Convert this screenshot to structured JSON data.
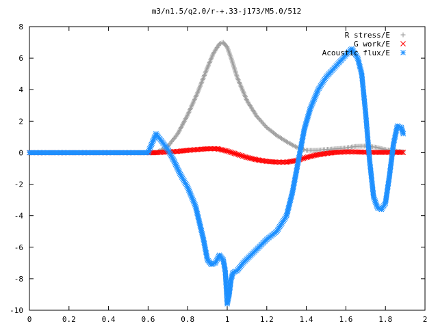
{
  "chart_data": {
    "type": "scatter",
    "title": "m3/n1.5/q2.0/r-+.33-j173/M5.0/512",
    "xlabel": "",
    "ylabel": "",
    "xlim": [
      0,
      2
    ],
    "ylim": [
      -10,
      8
    ],
    "x_ticks": [
      "0",
      "0.2",
      "0.4",
      "0.6",
      "0.8",
      "1",
      "1.2",
      "1.4",
      "1.6",
      "1.8",
      "2"
    ],
    "y_ticks": [
      "8",
      "6",
      "4",
      "2",
      "0",
      "-2",
      "-4",
      "-6",
      "-8",
      "-10"
    ],
    "grid": false,
    "legend_position": "top-right",
    "series": [
      {
        "name": "R stress/E",
        "marker": "plus",
        "color": "#a0a0a0",
        "x": [
          0.0,
          0.1,
          0.2,
          0.3,
          0.4,
          0.5,
          0.6,
          0.64,
          0.7,
          0.75,
          0.8,
          0.85,
          0.9,
          0.93,
          0.96,
          0.98,
          1.0,
          1.02,
          1.05,
          1.1,
          1.15,
          1.2,
          1.25,
          1.3,
          1.35,
          1.4,
          1.45,
          1.5,
          1.55,
          1.6,
          1.65,
          1.7,
          1.75,
          1.8,
          1.85,
          1.89
        ],
        "y": [
          0,
          0,
          0,
          0,
          0,
          0,
          0,
          0,
          0.4,
          1.2,
          2.4,
          3.8,
          5.4,
          6.3,
          6.9,
          7.0,
          6.7,
          6.0,
          4.8,
          3.3,
          2.3,
          1.6,
          1.1,
          0.7,
          0.35,
          0.15,
          0.15,
          0.2,
          0.25,
          0.3,
          0.4,
          0.42,
          0.35,
          0.2,
          0.1,
          0.05
        ]
      },
      {
        "name": "G work/E",
        "marker": "cross",
        "color": "#ff0000",
        "x": [
          0.0,
          0.1,
          0.2,
          0.3,
          0.4,
          0.5,
          0.6,
          0.64,
          0.7,
          0.75,
          0.8,
          0.85,
          0.9,
          0.95,
          1.0,
          1.05,
          1.1,
          1.15,
          1.2,
          1.25,
          1.3,
          1.35,
          1.4,
          1.45,
          1.5,
          1.55,
          1.6,
          1.65,
          1.7,
          1.75,
          1.8,
          1.85,
          1.89
        ],
        "y": [
          0,
          0,
          0,
          0,
          0,
          0,
          0,
          0.0,
          0.05,
          0.08,
          0.15,
          0.2,
          0.25,
          0.25,
          0.1,
          -0.1,
          -0.3,
          -0.45,
          -0.55,
          -0.6,
          -0.6,
          -0.5,
          -0.3,
          -0.15,
          -0.05,
          0.02,
          0.05,
          0.05,
          0.03,
          0.02,
          0.02,
          0.02,
          0.02
        ]
      },
      {
        "name": "Acoustic flux/E",
        "marker": "star",
        "color": "#1e90ff",
        "x": [
          0.0,
          0.1,
          0.2,
          0.3,
          0.4,
          0.5,
          0.6,
          0.64,
          0.67,
          0.7,
          0.73,
          0.76,
          0.8,
          0.84,
          0.88,
          0.9,
          0.92,
          0.94,
          0.96,
          0.98,
          0.99,
          1.0,
          1.01,
          1.02,
          1.03,
          1.05,
          1.08,
          1.12,
          1.16,
          1.2,
          1.25,
          1.3,
          1.33,
          1.36,
          1.39,
          1.42,
          1.46,
          1.5,
          1.55,
          1.6,
          1.63,
          1.66,
          1.68,
          1.7,
          1.72,
          1.74,
          1.76,
          1.78,
          1.8,
          1.82,
          1.84,
          1.86,
          1.88,
          1.89
        ],
        "y": [
          0,
          0,
          0,
          0,
          0,
          0,
          0,
          1.2,
          0.7,
          0.2,
          -0.5,
          -1.3,
          -2.2,
          -3.4,
          -5.5,
          -6.8,
          -7.1,
          -7.0,
          -6.5,
          -6.8,
          -7.5,
          -9.6,
          -9.0,
          -8.0,
          -7.6,
          -7.5,
          -7.0,
          -6.5,
          -6.0,
          -5.5,
          -5.0,
          -4.0,
          -2.5,
          -0.5,
          1.5,
          2.8,
          4.0,
          4.8,
          5.5,
          6.2,
          6.6,
          6.0,
          5.0,
          2.5,
          -0.5,
          -2.8,
          -3.5,
          -3.6,
          -3.2,
          -1.5,
          0.5,
          1.7,
          1.6,
          1.2
        ]
      }
    ]
  }
}
